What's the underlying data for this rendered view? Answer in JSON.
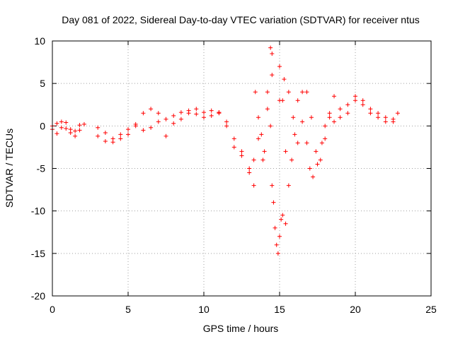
{
  "chart_data": {
    "type": "scatter",
    "title": "Day 081 of 2022, Sidereal Day-to-day VTEC variation (SDTVAR) for receiver ntus",
    "xlabel": "GPS time / hours",
    "ylabel": "SDTVAR / TECUs",
    "xlim": [
      0,
      25
    ],
    "ylim": [
      -20,
      10
    ],
    "xticks": [
      0,
      5,
      10,
      15,
      20,
      25
    ],
    "yticks": [
      -20,
      -15,
      -10,
      -5,
      0,
      5,
      10
    ],
    "xtick_labels": [
      "0",
      "5",
      "10",
      "15",
      "20",
      "25"
    ],
    "ytick_labels": [
      "-20",
      "-15",
      "-10",
      "-5",
      "0",
      "5",
      "10"
    ],
    "grid": true,
    "grid_style": "dotted",
    "marker": "+",
    "series": [
      {
        "name": "SDTVAR",
        "color": "#ff0000",
        "marker": "+",
        "tracks": [
          {
            "x": [
              0.0,
              0.3,
              0.6,
              0.9,
              1.2,
              1.5,
              1.8,
              2.1
            ],
            "y": [
              0.0,
              0.3,
              0.5,
              -0.3,
              -0.8,
              -1.2,
              -0.5,
              0.2
            ]
          },
          {
            "x": [
              0.0,
              0.3,
              0.6,
              0.9,
              1.2,
              1.5,
              1.8
            ],
            "y": [
              -0.4,
              -0.9,
              -0.2,
              0.4,
              -0.4,
              -0.6,
              0.1
            ]
          },
          {
            "x": [
              3.0,
              3.5,
              4.0,
              4.5,
              5.0,
              5.5,
              6.0,
              6.5,
              7.0,
              7.5,
              8.0,
              8.5,
              9.0,
              9.5,
              10.0,
              10.5,
              11.0
            ],
            "y": [
              -1.2,
              -1.8,
              -1.9,
              -1.5,
              -1.0,
              0.0,
              1.5,
              2.0,
              1.5,
              0.8,
              1.2,
              1.6,
              1.8,
              1.4,
              1.6,
              1.2,
              1.5
            ]
          },
          {
            "x": [
              3.0,
              3.5,
              4.0,
              4.5,
              5.0,
              5.5,
              6.0,
              6.5,
              7.0,
              7.5,
              8.0,
              8.5,
              9.0,
              9.5,
              10.0,
              10.5,
              11.0,
              11.5,
              12.0,
              12.5,
              13.0,
              13.3
            ],
            "y": [
              -0.2,
              -0.8,
              -1.5,
              -1.0,
              -0.4,
              0.2,
              -0.5,
              -0.2,
              0.5,
              -1.2,
              0.3,
              0.8,
              1.5,
              2.0,
              1.0,
              1.8,
              1.6,
              0.5,
              -1.5,
              -3.0,
              -5.0,
              -7.0
            ]
          },
          {
            "x": [
              11.0,
              11.5,
              12.0,
              12.5,
              13.0,
              13.3,
              13.6,
              13.9,
              14.2,
              14.4
            ],
            "y": [
              1.6,
              0.0,
              -2.5,
              -3.5,
              -5.5,
              -4.0,
              -1.5,
              -4.0,
              4.0,
              0.0
            ]
          },
          {
            "x": [
              13.4,
              13.6,
              13.8,
              14.0,
              14.2,
              14.5
            ],
            "y": [
              4.0,
              1.0,
              -1.0,
              -3.0,
              2.0,
              6.0
            ]
          },
          {
            "x": [
              14.5,
              14.6,
              14.7,
              14.8,
              14.9,
              15.0,
              15.1,
              15.2,
              15.4
            ],
            "y": [
              -7.0,
              -9.0,
              -12.0,
              -14.0,
              -15.0,
              -13.0,
              -11.0,
              -10.5,
              -11.5
            ]
          },
          {
            "x": [
              14.4,
              14.5
            ],
            "y": [
              9.2,
              8.5
            ]
          },
          {
            "x": [
              15.0,
              15.2,
              15.4,
              15.6,
              15.8,
              16.0,
              16.2,
              16.5,
              16.8,
              17.0,
              17.2,
              17.5,
              17.8,
              18.0,
              18.3,
              18.6,
              19.0,
              19.5,
              20.0,
              20.5,
              21.0,
              21.5,
              22.0,
              22.5,
              22.8
            ],
            "y": [
              7.0,
              3.0,
              -3.0,
              -7.0,
              -4.0,
              -1.0,
              3.0,
              4.0,
              -2.0,
              -5.0,
              -6.0,
              -4.5,
              -2.0,
              0.0,
              1.0,
              0.5,
              2.0,
              2.5,
              3.5,
              2.5,
              1.5,
              1.0,
              0.5,
              0.8,
              1.5
            ]
          },
          {
            "x": [
              15.0,
              15.3,
              15.6,
              15.9,
              16.2,
              16.5,
              16.8,
              17.1,
              17.4,
              17.7,
              18.0,
              18.3,
              18.6,
              19.0,
              19.5,
              20.0,
              20.5,
              21.0,
              21.5,
              22.0,
              22.5
            ],
            "y": [
              3.0,
              5.5,
              4.0,
              1.0,
              -2.0,
              0.5,
              4.0,
              1.0,
              -3.0,
              -4.0,
              -1.5,
              1.5,
              3.5,
              1.0,
              1.5,
              3.0,
              3.0,
              2.0,
              1.5,
              1.0,
              0.5
            ]
          }
        ]
      }
    ]
  }
}
